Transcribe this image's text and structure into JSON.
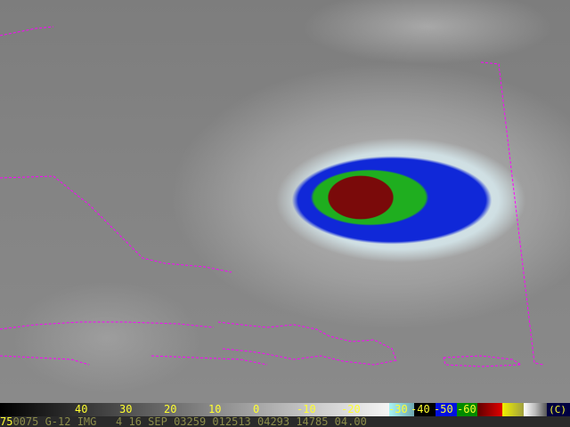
{
  "colorbar": {
    "ticks": [
      "40",
      "30",
      "20",
      "10",
      "0",
      "-10",
      "-20",
      "-30",
      "-40",
      "-50",
      "-60"
    ],
    "unit": "(C)",
    "colors": {
      "cyan": "#9ff0f0",
      "teal": "#70a8b0",
      "blue": "#0010e0",
      "green": "#008a00",
      "red": "#e00000",
      "darkred": "#600000",
      "yellow": "#f0f000",
      "navy": "#000040"
    }
  },
  "info": {
    "channel": "75",
    "text": "0075 G-12 IMG   4 16 SEP 03259 012513 04293 14785 04.00"
  },
  "colors": {
    "coastline": "#ff00ff",
    "storm_core": "#7a0a0a",
    "storm_green": "#1fae1f",
    "storm_blue": "#1028d8"
  }
}
